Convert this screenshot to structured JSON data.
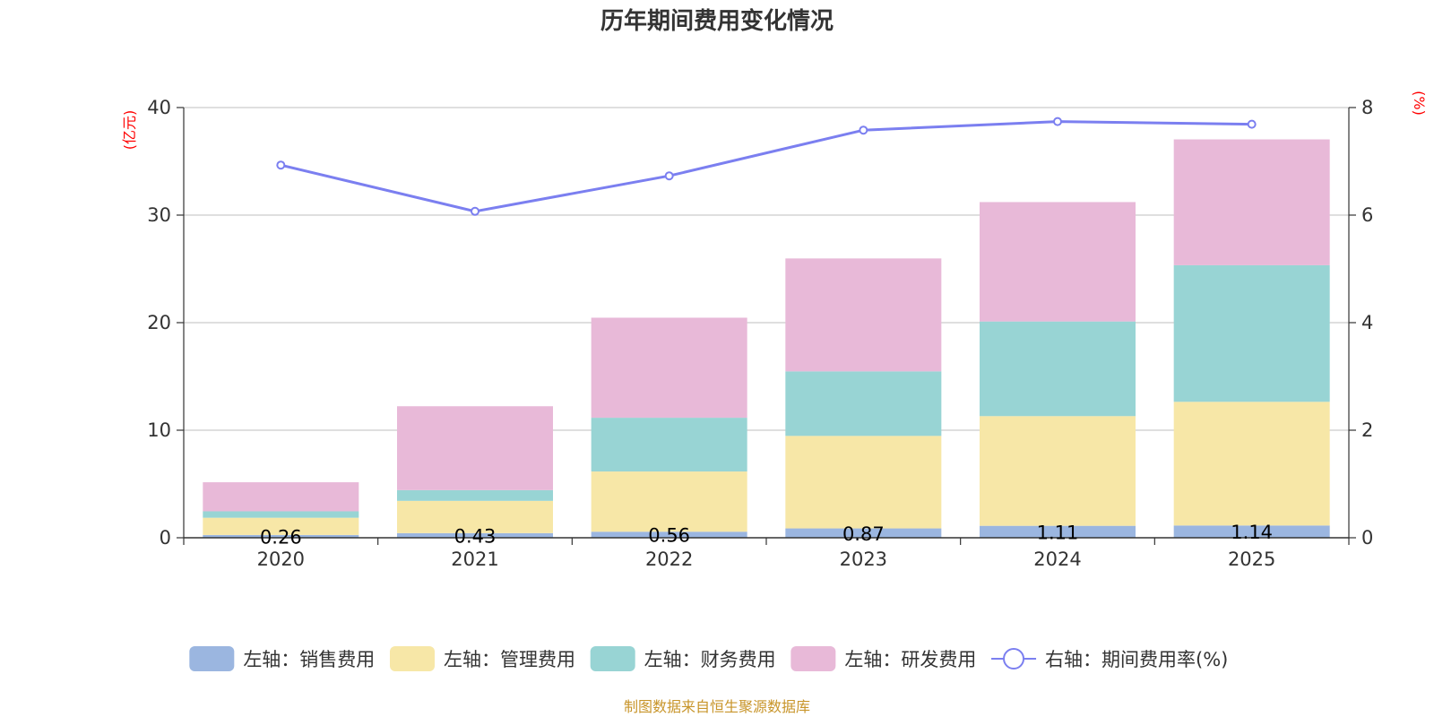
{
  "chart_data": {
    "type": "bar",
    "title": "历年期间费用变化情况",
    "categories": [
      "2020",
      "2021",
      "2022",
      "2023",
      "2024",
      "2025"
    ],
    "y_left": {
      "label": "(亿元)",
      "ylim": [
        0,
        40
      ],
      "ticks": [
        "0",
        "10",
        "20",
        "30",
        "40"
      ],
      "tick_values": [
        0,
        10,
        20,
        30,
        40
      ]
    },
    "y_right": {
      "label": "(%)",
      "ylim": [
        0,
        8
      ],
      "ticks": [
        "0",
        "2",
        "4",
        "6",
        "8"
      ],
      "tick_values": [
        0,
        2,
        4,
        6,
        8
      ]
    },
    "series": [
      {
        "name": "左轴：销售费用",
        "type": "bar",
        "axis": "left",
        "color": "#9bb6e0",
        "values": [
          0.26,
          0.43,
          0.56,
          0.87,
          1.11,
          1.14
        ],
        "labels": [
          "0.26",
          "0.43",
          "0.56",
          "0.87",
          "1.11",
          "1.14"
        ]
      },
      {
        "name": "左轴：管理费用",
        "type": "bar",
        "axis": "left",
        "color": "#f7e7a7",
        "values": [
          1.6,
          3.0,
          5.6,
          8.6,
          10.2,
          11.5
        ]
      },
      {
        "name": "左轴：财务费用",
        "type": "bar",
        "axis": "left",
        "color": "#98d4d4",
        "values": [
          0.6,
          1.0,
          5.0,
          6.0,
          8.8,
          12.7
        ]
      },
      {
        "name": "左轴：研发费用",
        "type": "bar",
        "axis": "left",
        "color": "#e8b9d8",
        "values": [
          2.7,
          7.8,
          9.3,
          10.5,
          11.1,
          11.7
        ]
      },
      {
        "name": "右轴：期间费用率(%)",
        "type": "line",
        "axis": "right",
        "color": "#7b7ff0",
        "values": [
          6.93,
          6.07,
          6.73,
          7.58,
          7.74,
          7.69
        ]
      }
    ],
    "legend_position": "bottom",
    "grid": true
  },
  "source": "制图数据来自恒生聚源数据库"
}
